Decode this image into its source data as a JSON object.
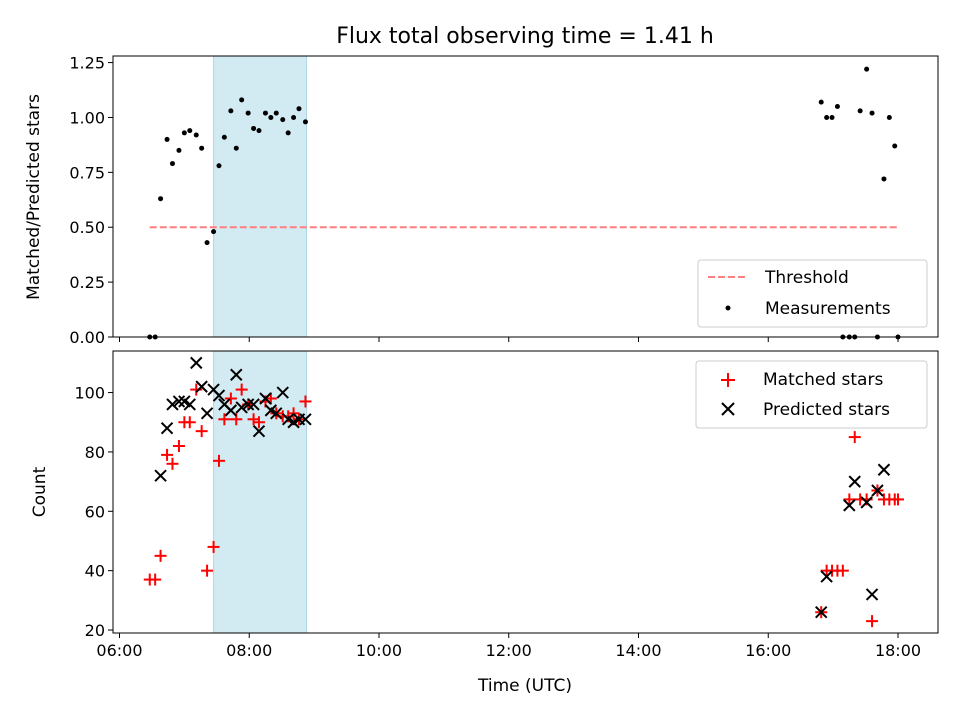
{
  "chart_data": {
    "title": "Flux total observing time = 1.41 h",
    "xlabel": "Time (UTC)",
    "x_ticks": [
      "06:00",
      "08:00",
      "10:00",
      "12:00",
      "14:00",
      "16:00",
      "18:00"
    ],
    "xlim": [
      "05:54",
      "18:37"
    ],
    "shaded_span": [
      "07:27",
      "08:53"
    ],
    "colors": {
      "span": "#add8e6",
      "threshold": "#ff7f7f",
      "matched": "#ff0000",
      "predicted": "#000000",
      "measurement": "#000000"
    },
    "panels": [
      {
        "type": "scatter",
        "ylabel": "Matched/Predicted stars",
        "ylim": [
          0,
          1.28
        ],
        "y_ticks": [
          "0.00",
          "0.25",
          "0.50",
          "0.75",
          "1.00",
          "1.25"
        ],
        "legend_position": "lower-right",
        "series": [
          {
            "name": "Threshold",
            "kind": "dashed-line",
            "x": [
              "06:28",
              "17:59"
            ],
            "y": [
              0.5,
              0.5
            ]
          },
          {
            "name": "Measurements",
            "kind": "dot",
            "x": [
              "06:28",
              "06:33",
              "06:38",
              "06:44",
              "06:49",
              "06:55",
              "07:00",
              "07:05",
              "07:11",
              "07:16",
              "07:21",
              "07:27",
              "07:32",
              "07:37",
              "07:43",
              "07:48",
              "07:53",
              "07:59",
              "08:04",
              "08:09",
              "08:15",
              "08:20",
              "08:25",
              "08:31",
              "08:36",
              "08:41",
              "08:46",
              "08:52",
              "16:49",
              "16:54",
              "16:59",
              "17:04",
              "17:09",
              "17:15",
              "17:20",
              "17:25",
              "17:31",
              "17:36",
              "17:41",
              "17:47",
              "17:52",
              "17:57",
              "18:00"
            ],
            "y": [
              0.0,
              0.0,
              0.63,
              0.9,
              0.79,
              0.85,
              0.93,
              0.94,
              0.92,
              0.86,
              0.43,
              0.48,
              0.78,
              0.91,
              1.03,
              0.86,
              1.08,
              1.02,
              0.95,
              0.94,
              1.02,
              1.0,
              1.02,
              0.99,
              0.93,
              1.0,
              1.04,
              0.98,
              1.07,
              1.0,
              1.0,
              1.05,
              0.0,
              0.0,
              0.0,
              1.03,
              1.22,
              1.02,
              0.0,
              0.72,
              1.0,
              0.87,
              0.0
            ]
          }
        ]
      },
      {
        "type": "scatter",
        "ylabel": "Count",
        "ylim": [
          19,
          114
        ],
        "y_ticks": [
          "20",
          "40",
          "60",
          "80",
          "100"
        ],
        "legend_position": "upper-right",
        "series": [
          {
            "name": "Matched stars",
            "kind": "plus",
            "x": [
              "06:28",
              "06:33",
              "06:38",
              "06:44",
              "06:49",
              "06:55",
              "07:00",
              "07:05",
              "07:11",
              "07:16",
              "07:21",
              "07:27",
              "07:32",
              "07:37",
              "07:43",
              "07:48",
              "07:53",
              "07:59",
              "08:04",
              "08:09",
              "08:15",
              "08:20",
              "08:25",
              "08:31",
              "08:36",
              "08:41",
              "08:46",
              "08:52",
              "16:49",
              "16:54",
              "16:59",
              "17:04",
              "17:09",
              "17:15",
              "17:20",
              "17:25",
              "17:31",
              "17:36",
              "17:41",
              "17:47",
              "17:52",
              "17:57",
              "18:00"
            ],
            "y": [
              37,
              37,
              45,
              79,
              76,
              82,
              90,
              90,
              101,
              87,
              40,
              48,
              77,
              91,
              98,
              91,
              101,
              96,
              91,
              90,
              97,
              98,
              93,
              92,
              92,
              93,
              91,
              97,
              26,
              40,
              40,
              40,
              40,
              64,
              85,
              64,
              64,
              23,
              67,
              64,
              64,
              64,
              64
            ]
          },
          {
            "name": "Predicted stars",
            "kind": "x",
            "x": [
              "06:38",
              "06:44",
              "06:49",
              "06:55",
              "07:00",
              "07:05",
              "07:11",
              "07:16",
              "07:21",
              "07:27",
              "07:32",
              "07:37",
              "07:43",
              "07:48",
              "07:53",
              "07:59",
              "08:04",
              "08:09",
              "08:15",
              "08:20",
              "08:25",
              "08:31",
              "08:36",
              "08:41",
              "08:46",
              "08:52",
              "16:49",
              "16:54",
              "17:15",
              "17:20",
              "17:31",
              "17:36",
              "17:41",
              "17:47"
            ],
            "y": [
              72,
              88,
              96,
              97,
              97,
              96,
              110,
              102,
              93,
              101,
              99,
              96,
              94,
              106,
              95,
              96,
              96,
              87,
              98,
              94,
              93,
              100,
              91,
              90,
              91,
              91,
              26,
              38,
              62,
              70,
              63,
              32,
              67,
              74
            ]
          }
        ]
      }
    ]
  }
}
